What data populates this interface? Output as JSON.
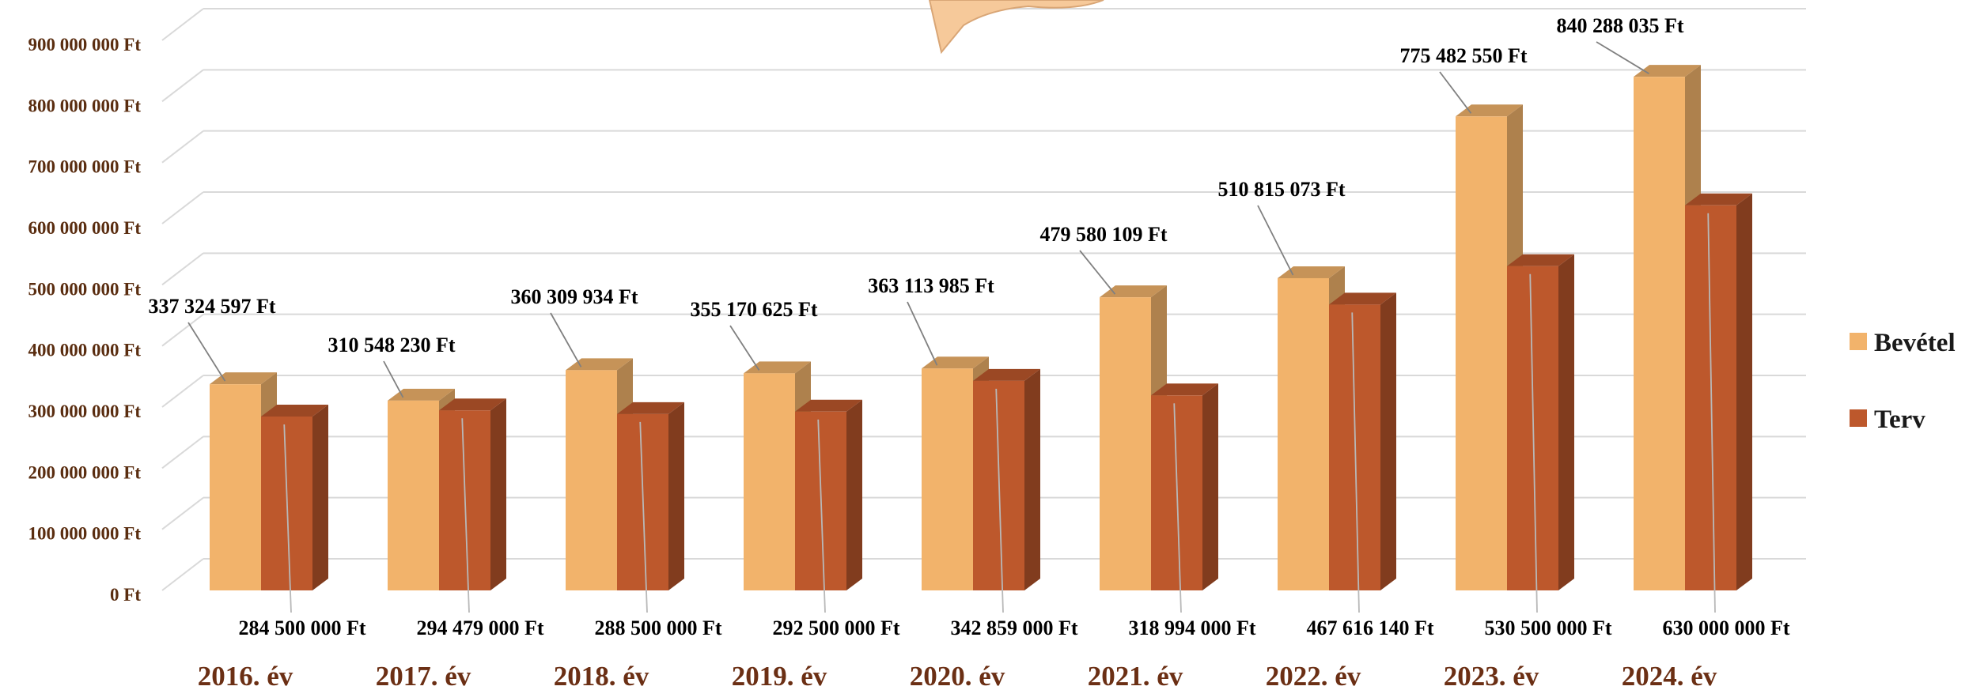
{
  "chart_data": {
    "type": "bar",
    "categories": [
      "2016. év",
      "2017. év",
      "2018. év",
      "2019. év",
      "2020. év",
      "2021. év",
      "2022. év",
      "2023. év",
      "2024. év"
    ],
    "series": [
      {
        "name": "Bevétel",
        "values": [
          337324597,
          310548230,
          360309934,
          355170625,
          363113985,
          479580109,
          510815073,
          775482550,
          840288035
        ],
        "labels": [
          "337 324 597 Ft",
          "310 548 230 Ft",
          "360 309 934 Ft",
          "355 170 625 Ft",
          "363 113 985 Ft",
          "479 580 109 Ft",
          "510 815 073 Ft",
          "775 482 550 Ft",
          "840 288 035 Ft"
        ],
        "color": "#f2b36b"
      },
      {
        "name": "Terv",
        "values": [
          284500000,
          294479000,
          288500000,
          292500000,
          342859000,
          318994000,
          467616140,
          530500000,
          630000000
        ],
        "labels": [
          "284 500 000 Ft",
          "294 479 000 Ft",
          "288 500 000 Ft",
          "292 500 000 Ft",
          "342 859 000 Ft",
          "318 994 000 Ft",
          "467 616 140 Ft",
          "530 500 000 Ft",
          "630 000 000 Ft"
        ],
        "color": "#bd582c"
      }
    ],
    "yticks": [
      "0 Ft",
      "100 000 000 Ft",
      "200 000 000 Ft",
      "300 000 000 Ft",
      "400 000 000 Ft",
      "500 000 000 Ft",
      "600 000 000 Ft",
      "700 000 000 Ft",
      "800 000 000 Ft",
      "900 000 000 Ft"
    ],
    "ylim": [
      0,
      900000000
    ],
    "grid": true,
    "legend_position": "right",
    "title": "",
    "xlabel": "",
    "ylabel": ""
  }
}
